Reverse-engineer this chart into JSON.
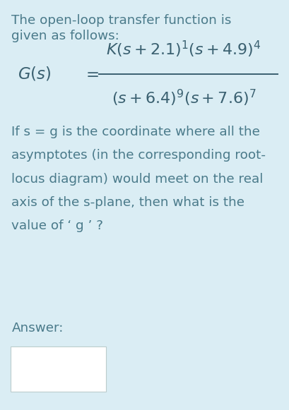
{
  "background_color": "#daedf4",
  "text_color": "#4a7a8a",
  "formula_color": "#3a6070",
  "title_line1": "The open-loop transfer function is",
  "title_line2": "given as follows:",
  "answer_label": "Answer:",
  "fontsize_main": 13.2,
  "fontsize_formula": 16.0,
  "fontsize_gs": 16.5,
  "question_lines": [
    "If s = g is the coordinate where all the",
    "asymptotes (in the corresponding root-",
    "locus diagram) would meet on the real",
    "axis of the s-plane, then what is the",
    "value of ‘ g ’ ?"
  ]
}
